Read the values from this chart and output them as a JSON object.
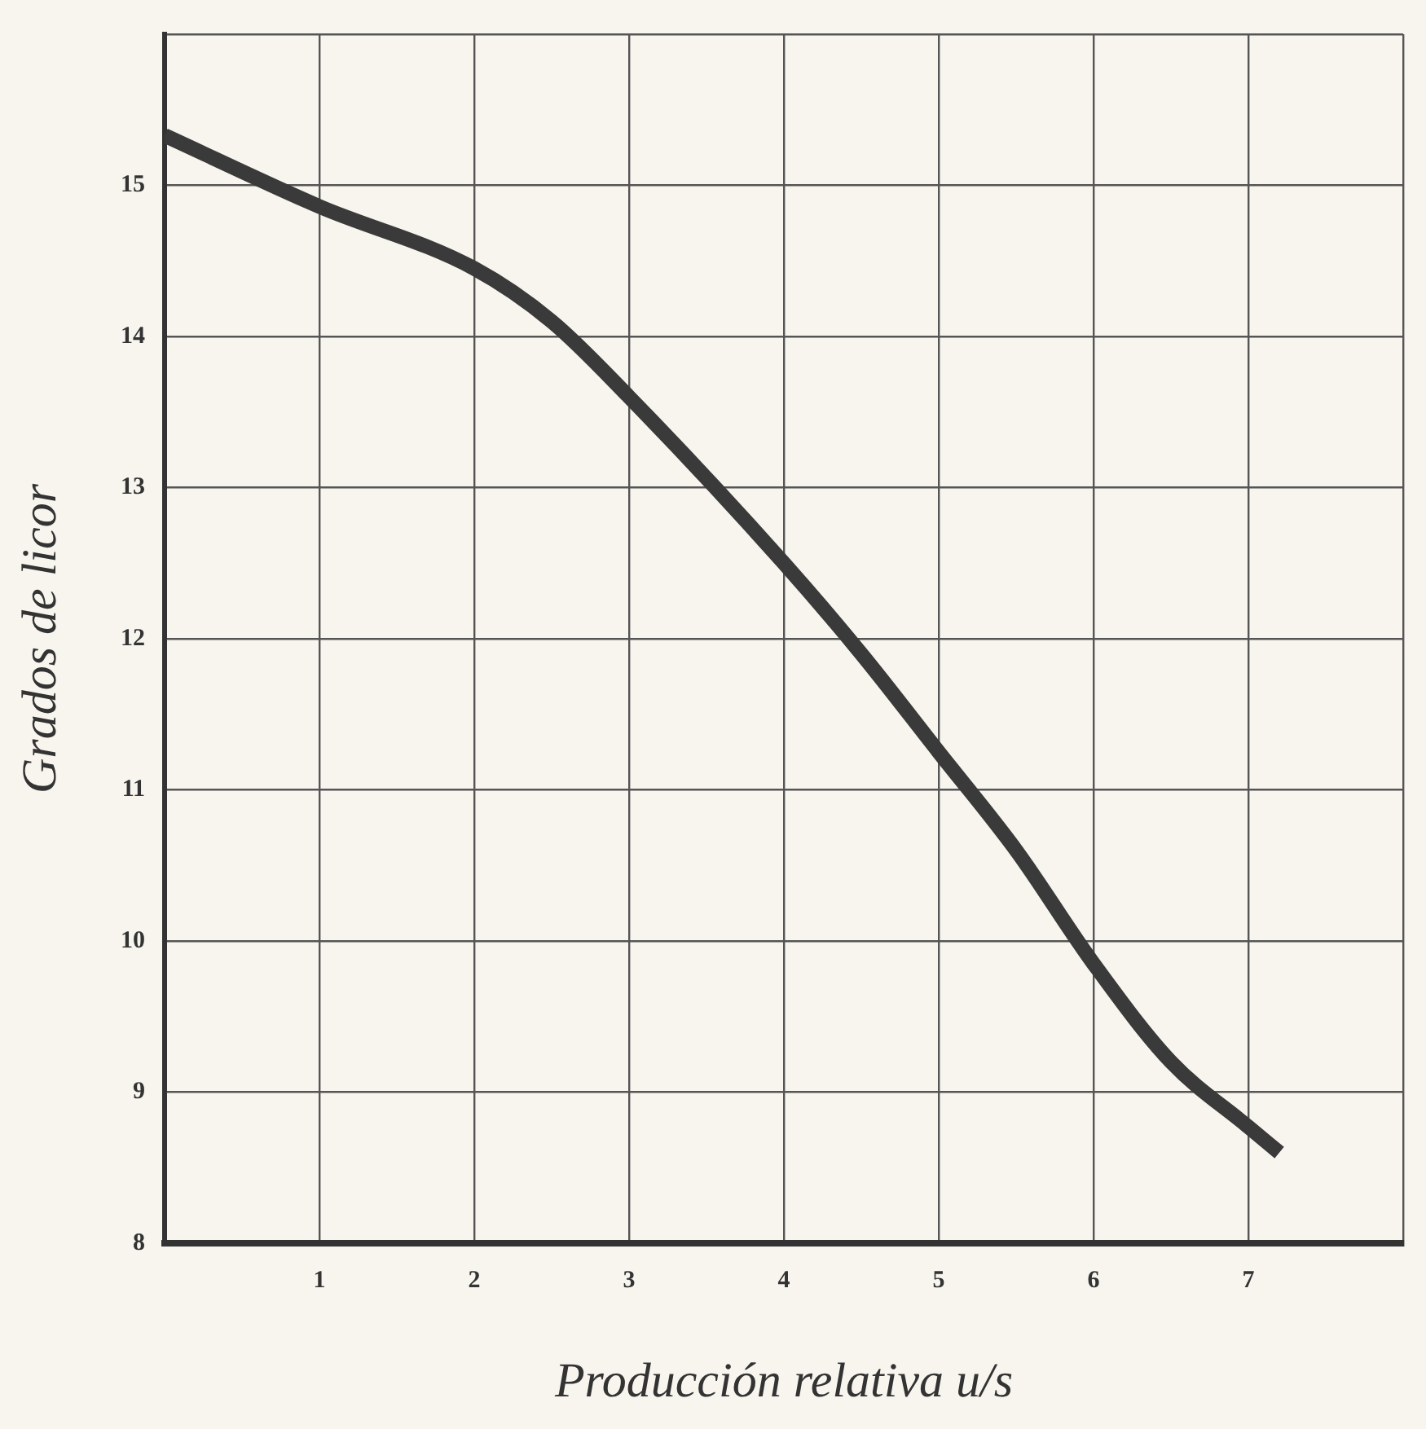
{
  "chart_data": {
    "type": "line",
    "xlabel": "Producción relativa u/s",
    "ylabel": "Grados de licor",
    "x": [
      0,
      1,
      2,
      2.5,
      3,
      4,
      4.5,
      5,
      5.5,
      6,
      6.5,
      7,
      7.2
    ],
    "series": [
      {
        "color": "#3a3a3a",
        "values": [
          15.33,
          14.86,
          14.45,
          14.1,
          13.6,
          12.5,
          11.9,
          11.25,
          10.6,
          9.85,
          9.2,
          8.77,
          8.6
        ]
      }
    ],
    "xlim": [
      0,
      8
    ],
    "xticks": [
      {
        "value": 0,
        "label": null
      },
      1,
      2,
      3,
      4,
      5,
      6,
      7,
      {
        "value": 8,
        "label": null
      }
    ],
    "ylim": [
      8,
      16
    ],
    "yticks": [
      8,
      9,
      10,
      11,
      12,
      13,
      14,
      15,
      {
        "value": 16,
        "label": null
      }
    ],
    "grid": true,
    "legend": false,
    "marker": "none",
    "line_style": "solid"
  }
}
